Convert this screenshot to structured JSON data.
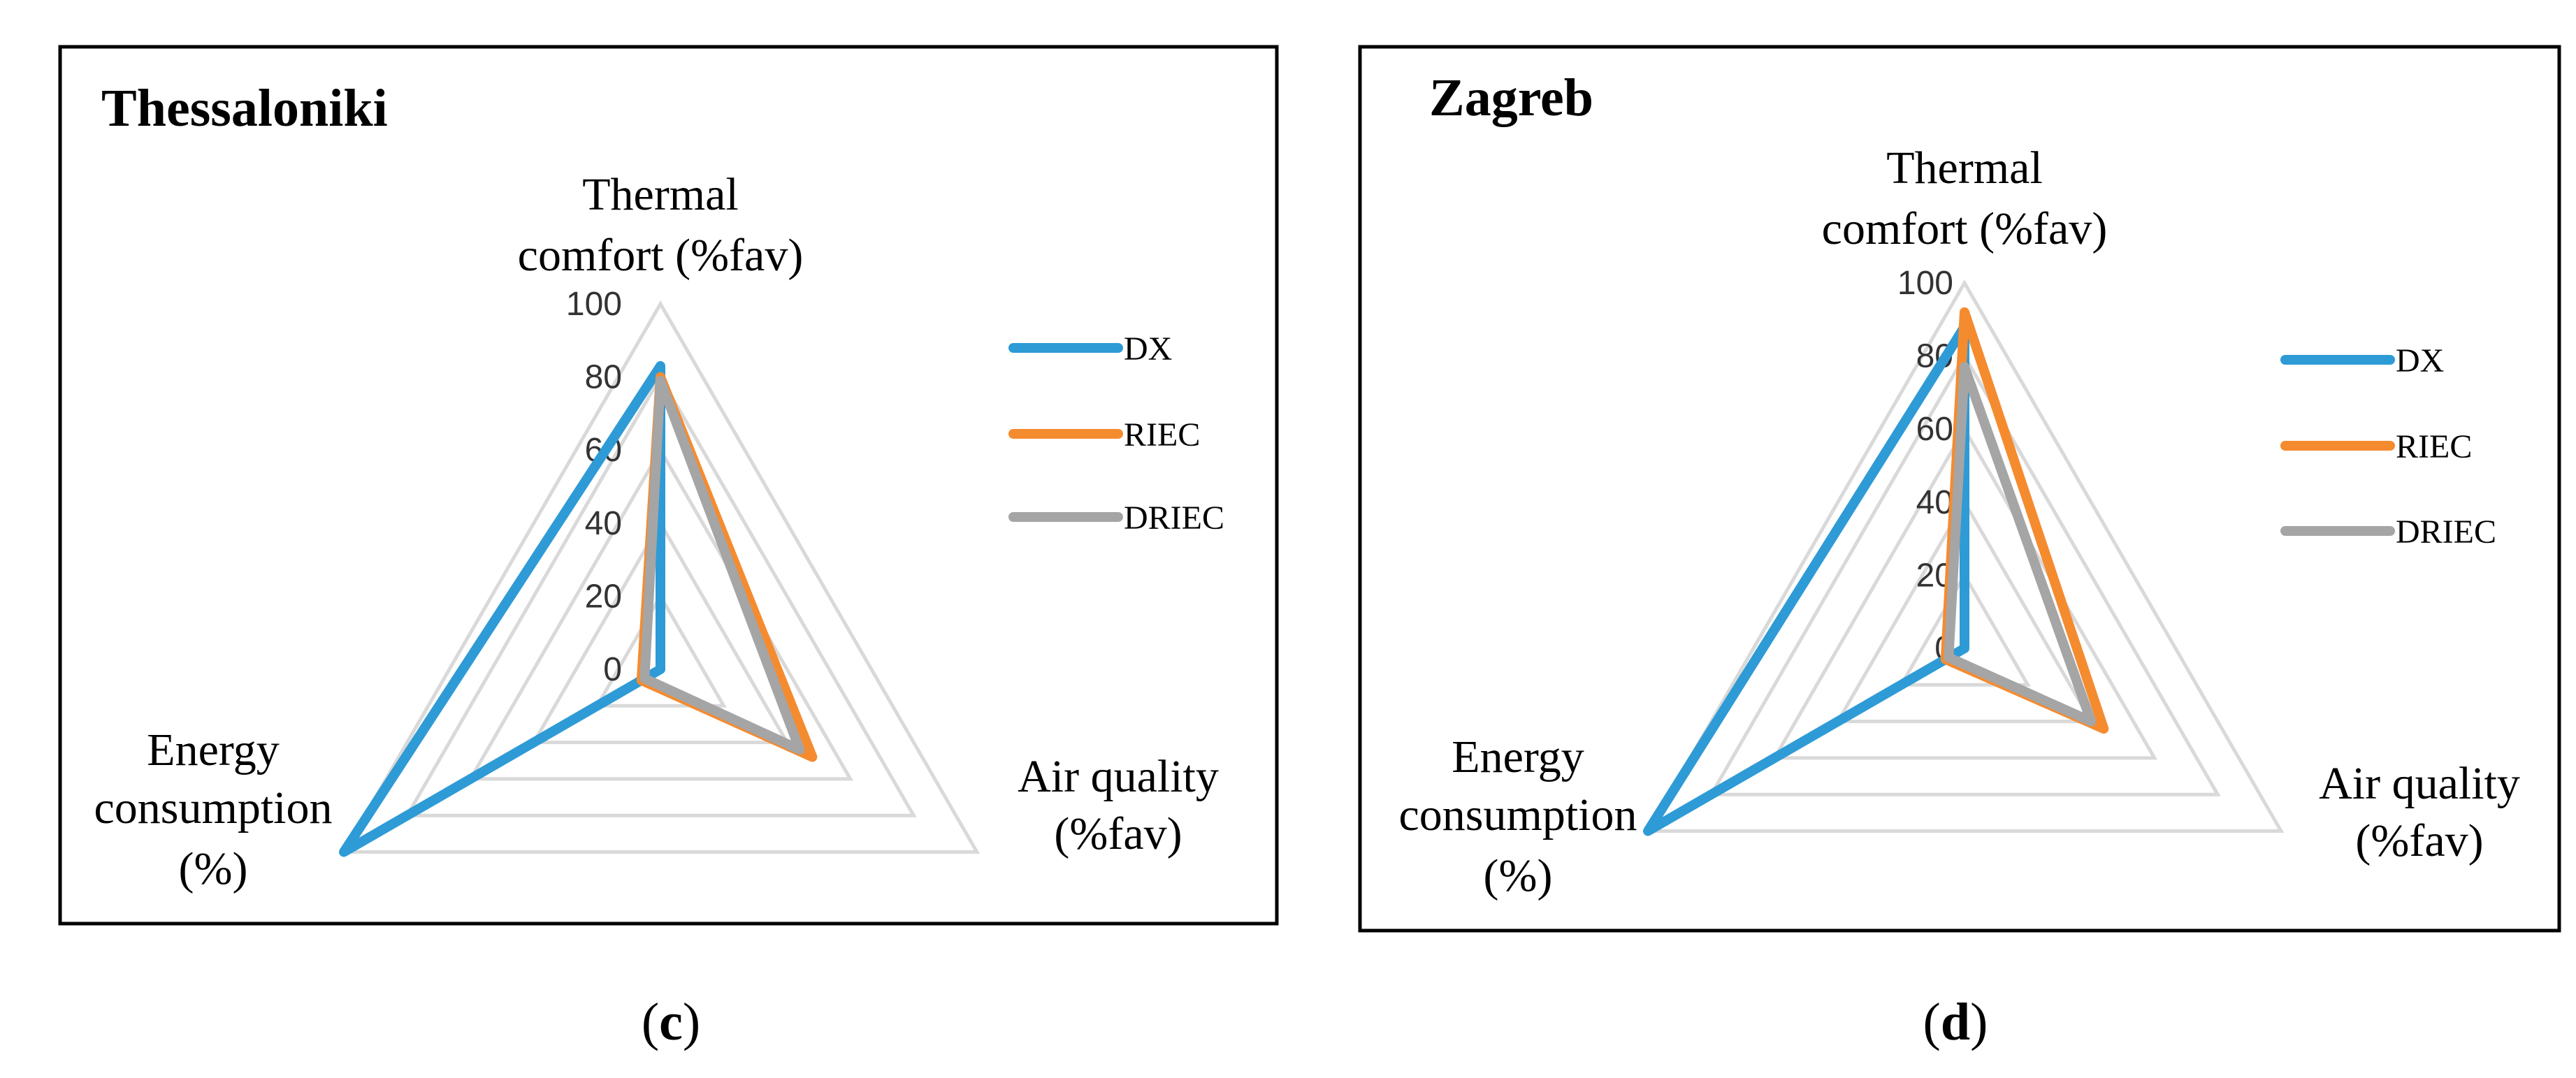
{
  "chart_data": [
    {
      "type": "radar",
      "title": "Thessaloniki",
      "caption": "(c)",
      "axes": [
        [
          "Thermal",
          "comfort (%fav)"
        ],
        [
          "Air quality",
          "(%fav)"
        ],
        [
          "Energy",
          "consumption",
          "(%)"
        ]
      ],
      "rlim": [
        0,
        100
      ],
      "ticks": [
        "0",
        "20",
        "40",
        "60",
        "80",
        "100"
      ],
      "tick_values": [
        0,
        20,
        40,
        60,
        80,
        100
      ],
      "legend_position": "right",
      "series": [
        {
          "name": "DX",
          "color": "#2e9bd6",
          "values": [
            83,
            0,
            100
          ]
        },
        {
          "name": "RIEC",
          "color": "#f58b2f",
          "values": [
            80,
            48,
            6
          ]
        },
        {
          "name": "DRIEC",
          "color": "#a5a5a5",
          "values": [
            79,
            44,
            5
          ]
        }
      ]
    },
    {
      "type": "radar",
      "title": "Zagreb",
      "caption": "(d)",
      "axes": [
        [
          "Thermal",
          "comfort (%fav)"
        ],
        [
          "Air quality",
          "(%fav)"
        ],
        [
          "Energy",
          "consumption",
          "(%)"
        ]
      ],
      "rlim": [
        0,
        100
      ],
      "ticks": [
        "0",
        "20",
        "40",
        "60",
        "80",
        "100"
      ],
      "tick_values": [
        0,
        20,
        40,
        60,
        80,
        100
      ],
      "legend_position": "right",
      "series": [
        {
          "name": "DX",
          "color": "#2e9bd6",
          "values": [
            88,
            0,
            100
          ]
        },
        {
          "name": "RIEC",
          "color": "#f58b2f",
          "values": [
            92,
            44,
            6
          ]
        },
        {
          "name": "DRIEC",
          "color": "#a5a5a5",
          "values": [
            77,
            40,
            5
          ]
        }
      ]
    }
  ]
}
